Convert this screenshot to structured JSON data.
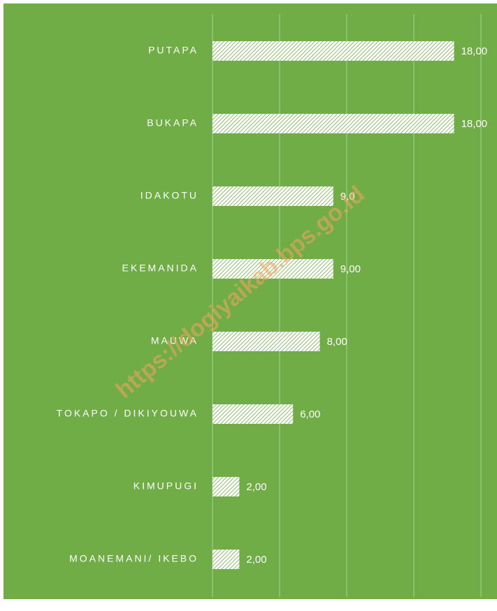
{
  "chart_data": {
    "type": "bar",
    "orientation": "horizontal",
    "categories": [
      "PUTAPA",
      "BUKAPA",
      "IDAKOTU",
      "EKEMANIDA",
      "MAUWA",
      "TOKAPO / DIKIYOUWA",
      "KIMUPUGI",
      "MOANEMANI/ IKEBO"
    ],
    "values": [
      18,
      18,
      9,
      9,
      8,
      6,
      2,
      2
    ],
    "value_labels": [
      "18,00",
      "18,00",
      "9,0",
      "9,00",
      "8,00",
      "6,00",
      "2,00",
      "2,00"
    ],
    "color": "#ffffff",
    "background": "#70ad47",
    "xlim": [
      0,
      20
    ],
    "xticks": [
      0,
      5,
      10,
      15,
      20
    ],
    "grid": true,
    "watermark": "https://dogiyaikab.bps.go.id"
  }
}
